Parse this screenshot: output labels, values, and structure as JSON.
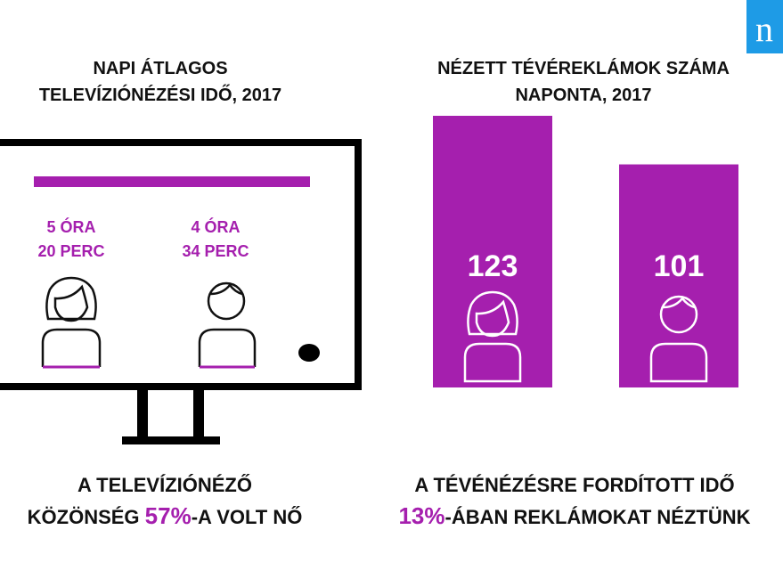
{
  "logo": "n",
  "left": {
    "title": [
      "NAPI ÁTLAGOS",
      "TELEVÍZIÓNÉZÉSI IDŐ, 2017"
    ],
    "women_time": [
      "5 ÓRA",
      "20 PERC"
    ],
    "men_time": [
      "4 ÓRA",
      "34 PERC"
    ],
    "footer": {
      "line1": "A TELEVÍZIÓNÉZŐ",
      "before": "KÖZÖNSÉG ",
      "highlight": "57%",
      "after": "-A VOLT NŐ"
    }
  },
  "chart_data": {
    "type": "bar",
    "title": [
      "NÉZETT TÉVÉREKLÁMOK SZÁMA",
      "NAPONTA, 2017"
    ],
    "values": [
      123,
      101
    ],
    "color": "#a51fae"
  },
  "right_footer": {
    "line1": "A TÉVÉNÉZÉSRE FORDÍTOTT IDŐ",
    "highlight": "13%",
    "after": "-ÁBAN REKLÁMOKAT NÉZTÜNK"
  }
}
